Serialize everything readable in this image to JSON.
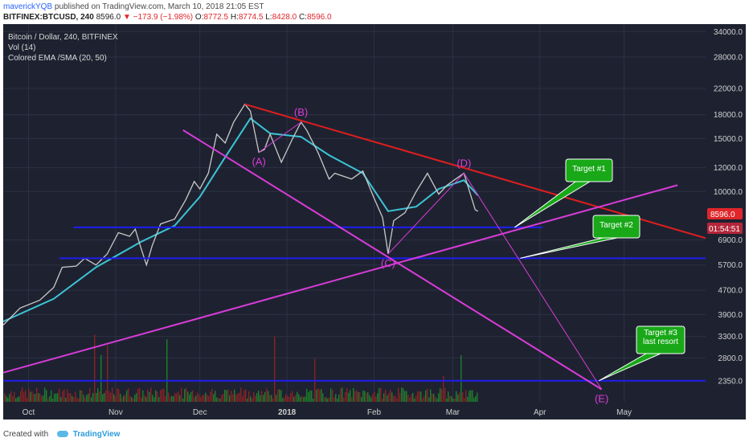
{
  "header": {
    "author": "maverickYQB",
    "published": "published on TradingView.com, March 10, 2018 21:05 EST",
    "symbol": "BITFINEX:BTCUSD, 240",
    "last": "8596.0",
    "change": "−173.9 (−1.98%)",
    "open_label": "O:",
    "open": "8772.5",
    "high_label": "H:",
    "high": "8774.5",
    "low_label": "L:",
    "low": "8428.0",
    "close_label": "C:",
    "close": "8596.0"
  },
  "legend": {
    "line1": "Bitcoin / Dollar, 240, BITFINEX",
    "line2": "Vol (14)",
    "line3": "Colored EMA /SMA (20, 50)"
  },
  "colors": {
    "background": "#1e2230",
    "grid": "#2c3144",
    "price": "#c9c9c9",
    "ema": "#3cc4d6",
    "sma": "#e0a23a",
    "resistance": "#e01e1e",
    "wave": "#d93cd9",
    "support": "#1e1ef0",
    "target_box": "#18a818",
    "price_badge": "#e0262a"
  },
  "price_badge": "8596.0",
  "time_badge": "01:54:51",
  "footer": {
    "created": "Created with",
    "brand": "TradingView"
  },
  "chart_data": {
    "type": "line",
    "title": "Bitcoin / Dollar, 240, BITFINEX",
    "y_scale": "log",
    "ylim": [
      2000,
      36000
    ],
    "y_ticks": [
      "34000.0",
      "28000.0",
      "22000.0",
      "18000.0",
      "15000.0",
      "12000.0",
      "10000.0",
      "6900.0",
      "5700.0",
      "4700.0",
      "3900.0",
      "3300.0",
      "2800.0",
      "2350.0"
    ],
    "y_tick_values": [
      34000,
      28000,
      22000,
      18000,
      15000,
      12000,
      10000,
      6900,
      5700,
      4700,
      3900,
      3300,
      2800,
      2350
    ],
    "xlim": [
      "2017-09-22",
      "2018-05-30"
    ],
    "x_ticks": [
      {
        "label": "Oct",
        "date": "2017-10-01"
      },
      {
        "label": "Nov",
        "date": "2017-11-01"
      },
      {
        "label": "Dec",
        "date": "2017-12-01"
      },
      {
        "label": "2018",
        "date": "2018-01-01"
      },
      {
        "label": "Feb",
        "date": "2018-02-01"
      },
      {
        "label": "Mar",
        "date": "2018-03-01"
      },
      {
        "label": "Apr",
        "date": "2018-04-01"
      },
      {
        "label": "May",
        "date": "2018-05-01"
      }
    ],
    "series": [
      {
        "name": "BTCUSD",
        "points": [
          [
            "2017-09-22",
            3600
          ],
          [
            "2017-09-28",
            4100
          ],
          [
            "2017-10-05",
            4350
          ],
          [
            "2017-10-10",
            4800
          ],
          [
            "2017-10-13",
            5600
          ],
          [
            "2017-10-18",
            5650
          ],
          [
            "2017-10-21",
            6000
          ],
          [
            "2017-10-25",
            5700
          ],
          [
            "2017-10-29",
            6200
          ],
          [
            "2017-11-02",
            7300
          ],
          [
            "2017-11-06",
            7100
          ],
          [
            "2017-11-08",
            7500
          ],
          [
            "2017-11-10",
            6500
          ],
          [
            "2017-11-12",
            5700
          ],
          [
            "2017-11-14",
            6600
          ],
          [
            "2017-11-17",
            7800
          ],
          [
            "2017-11-22",
            8100
          ],
          [
            "2017-11-26",
            9400
          ],
          [
            "2017-11-29",
            10800
          ],
          [
            "2017-12-01",
            10200
          ],
          [
            "2017-12-04",
            11500
          ],
          [
            "2017-12-07",
            15500
          ],
          [
            "2017-12-10",
            14500
          ],
          [
            "2017-12-13",
            17000
          ],
          [
            "2017-12-17",
            19500
          ],
          [
            "2017-12-19",
            18500
          ],
          [
            "2017-12-22",
            13500
          ],
          [
            "2017-12-24",
            13800
          ],
          [
            "2017-12-26",
            15500
          ],
          [
            "2017-12-30",
            12500
          ],
          [
            "2018-01-03",
            15000
          ],
          [
            "2018-01-06",
            17000
          ],
          [
            "2018-01-08",
            16000
          ],
          [
            "2018-01-12",
            13500
          ],
          [
            "2018-01-16",
            11000
          ],
          [
            "2018-01-18",
            11500
          ],
          [
            "2018-01-24",
            11000
          ],
          [
            "2018-01-28",
            11700
          ],
          [
            "2018-02-01",
            9500
          ],
          [
            "2018-02-04",
            8200
          ],
          [
            "2018-02-06",
            6200
          ],
          [
            "2018-02-08",
            8000
          ],
          [
            "2018-02-12",
            8500
          ],
          [
            "2018-02-16",
            10000
          ],
          [
            "2018-02-20",
            11500
          ],
          [
            "2018-02-24",
            9800
          ],
          [
            "2018-02-27",
            10500
          ],
          [
            "2018-03-02",
            11000
          ],
          [
            "2018-03-05",
            11500
          ],
          [
            "2018-03-07",
            10000
          ],
          [
            "2018-03-09",
            8700
          ],
          [
            "2018-03-10",
            8596
          ]
        ]
      },
      {
        "name": "EMA (20)",
        "points": [
          [
            "2017-09-22",
            3700
          ],
          [
            "2017-10-10",
            4400
          ],
          [
            "2017-10-25",
            5600
          ],
          [
            "2017-11-10",
            6800
          ],
          [
            "2017-11-22",
            7700
          ],
          [
            "2017-12-01",
            9600
          ],
          [
            "2017-12-10",
            13000
          ],
          [
            "2017-12-19",
            17500
          ],
          [
            "2017-12-26",
            15600
          ],
          [
            "2018-01-06",
            15200
          ],
          [
            "2018-01-16",
            13200
          ],
          [
            "2018-01-28",
            11500
          ],
          [
            "2018-02-06",
            8600
          ],
          [
            "2018-02-16",
            8900
          ],
          [
            "2018-02-24",
            10200
          ],
          [
            "2018-03-05",
            10900
          ],
          [
            "2018-03-10",
            9700
          ]
        ]
      }
    ],
    "annotations": [
      {
        "text": "(A)",
        "date": "2017-12-22",
        "value": 13500
      },
      {
        "text": "(B)",
        "date": "2018-01-06",
        "value": 17000
      },
      {
        "text": "(C)",
        "date": "2018-02-06",
        "value": 6200
      },
      {
        "text": "(D)",
        "date": "2018-03-05",
        "value": 11500
      },
      {
        "text": "(E)",
        "date": "2018-04-23",
        "value": 2200
      }
    ],
    "targets": [
      {
        "text": "Target #1",
        "date": "2018-03-23",
        "value": 7600
      },
      {
        "text": "Target #2",
        "date": "2018-03-25",
        "value": 6000
      },
      {
        "text": "Target #3 last resort",
        "date": "2018-04-22",
        "value": 2350
      }
    ],
    "trendlines": [
      {
        "kind": "resistance",
        "from": [
          "2017-12-17",
          19500
        ],
        "to": [
          "2018-05-30",
          7000
        ]
      },
      {
        "kind": "wave",
        "from": [
          "2017-09-22",
          2500
        ],
        "to": [
          "2018-05-20",
          10500
        ]
      },
      {
        "kind": "wave",
        "from": [
          "2017-11-25",
          16000
        ],
        "to": [
          "2018-04-23",
          2200
        ]
      }
    ],
    "supports": [
      {
        "value": 7600,
        "from": "2017-10-17",
        "to": "2018-04-02"
      },
      {
        "value": 6000,
        "from": "2017-10-12",
        "to": "2018-05-30"
      },
      {
        "value": 2350,
        "from": "2017-09-22",
        "to": "2018-05-30"
      }
    ]
  }
}
